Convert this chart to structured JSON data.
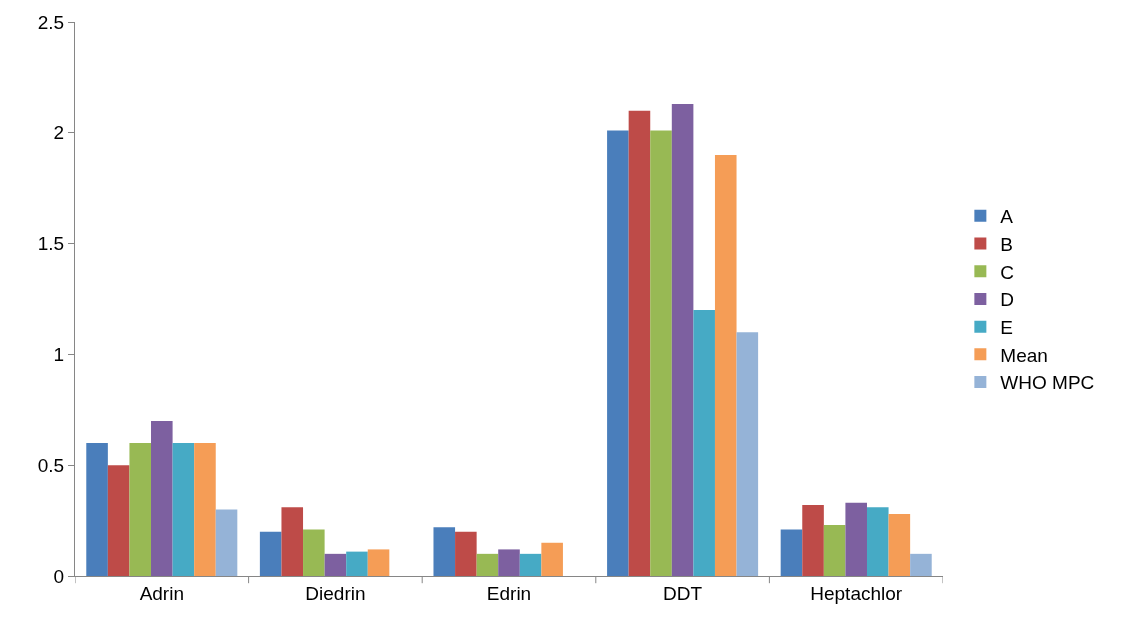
{
  "chart_data": {
    "type": "bar",
    "categories": [
      "Adrin",
      "Diedrin",
      "Edrin",
      "DDT",
      "Heptachlor"
    ],
    "series": [
      {
        "name": "A",
        "color": "#4a7ebb",
        "values": [
          0.6,
          0.2,
          0.22,
          2.01,
          0.21
        ]
      },
      {
        "name": "B",
        "color": "#be4b48",
        "values": [
          0.5,
          0.31,
          0.2,
          2.1,
          0.32
        ]
      },
      {
        "name": "C",
        "color": "#98b954",
        "values": [
          0.6,
          0.21,
          0.1,
          2.01,
          0.23
        ]
      },
      {
        "name": "D",
        "color": "#7d60a0",
        "values": [
          0.7,
          0.1,
          0.12,
          2.13,
          0.33
        ]
      },
      {
        "name": "E",
        "color": "#46aac5",
        "values": [
          0.6,
          0.11,
          0.1,
          1.2,
          0.31
        ]
      },
      {
        "name": "Mean",
        "color": "#f59d56",
        "values": [
          0.6,
          0.12,
          0.15,
          1.9,
          0.28
        ]
      },
      {
        "name": "WHO MPC",
        "color": "#95b3d7",
        "values": [
          0.3,
          null,
          null,
          1.1,
          0.1
        ]
      }
    ],
    "ylim": [
      0,
      2.5
    ],
    "yticks": [
      0,
      0.5,
      1,
      1.5,
      2,
      2.5
    ],
    "grid": false,
    "legend": "right"
  }
}
